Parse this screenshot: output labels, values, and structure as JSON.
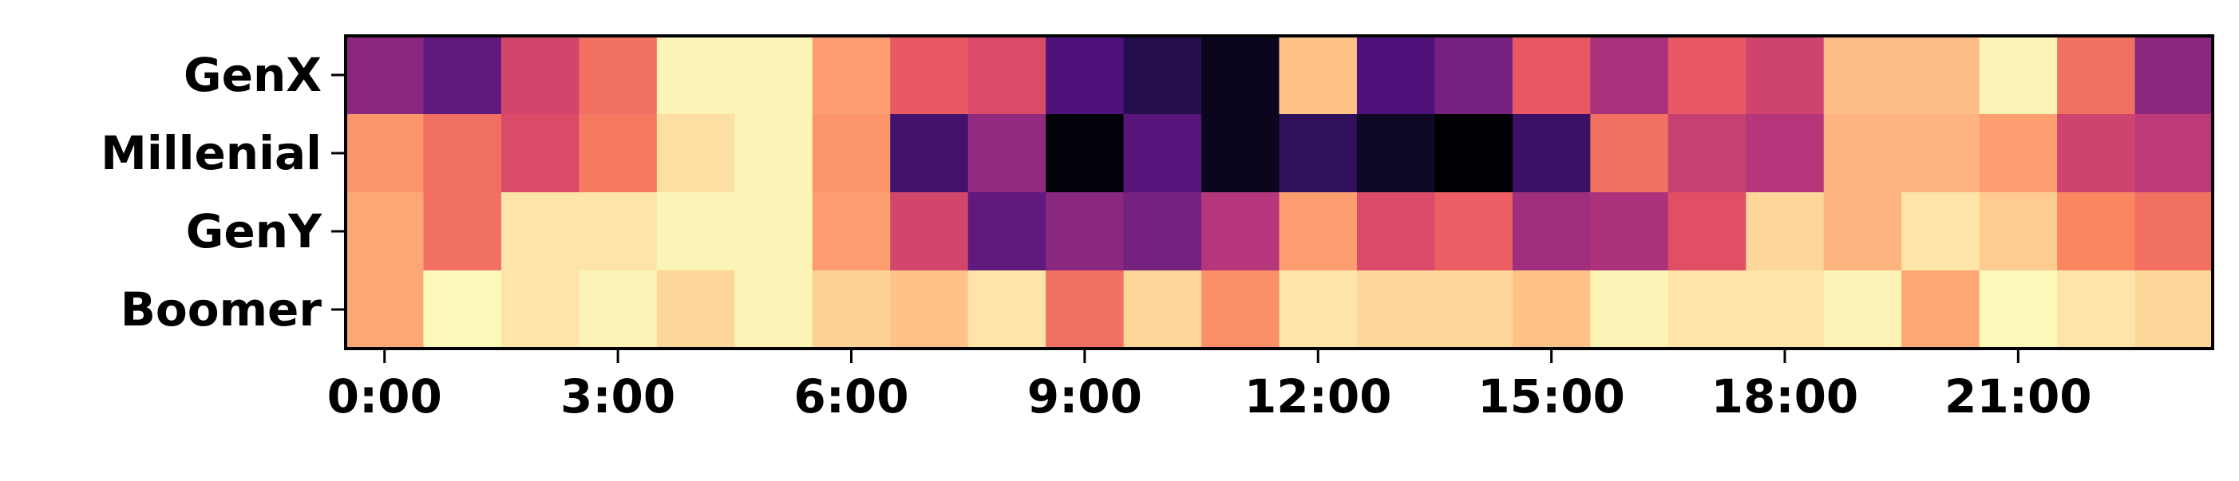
{
  "chart_data": {
    "type": "heatmap",
    "colormap": "magma",
    "rows": [
      "GenX",
      "Millenial",
      "GenY",
      "Boomer"
    ],
    "columns": [
      "0:00",
      "1:00",
      "2:00",
      "3:00",
      "4:00",
      "5:00",
      "6:00",
      "7:00",
      "8:00",
      "9:00",
      "10:00",
      "11:00",
      "12:00",
      "13:00",
      "14:00",
      "15:00",
      "16:00",
      "17:00",
      "18:00",
      "19:00",
      "20:00",
      "21:00",
      "22:00",
      "23:00"
    ],
    "x_tick_labels": [
      "0:00",
      "3:00",
      "6:00",
      "9:00",
      "12:00",
      "15:00",
      "18:00",
      "21:00"
    ],
    "x_tick_hours": [
      0,
      3,
      6,
      9,
      12,
      15,
      18,
      21
    ],
    "value_range": [
      0,
      1
    ],
    "values": [
      [
        0.4,
        0.3,
        0.58,
        0.7,
        0.98,
        0.98,
        0.8,
        0.65,
        0.6,
        0.25,
        0.15,
        0.05,
        0.88,
        0.25,
        0.35,
        0.65,
        0.47,
        0.65,
        0.57,
        0.87,
        0.87,
        0.98,
        0.7,
        0.4
      ],
      [
        0.78,
        0.7,
        0.6,
        0.72,
        0.94,
        0.98,
        0.78,
        0.22,
        0.42,
        0.01,
        0.27,
        0.05,
        0.18,
        0.07,
        0.0,
        0.2,
        0.7,
        0.55,
        0.5,
        0.85,
        0.85,
        0.8,
        0.57,
        0.52
      ],
      [
        0.82,
        0.7,
        0.95,
        0.95,
        0.98,
        0.98,
        0.8,
        0.58,
        0.3,
        0.4,
        0.35,
        0.5,
        0.8,
        0.6,
        0.66,
        0.45,
        0.48,
        0.62,
        0.92,
        0.85,
        0.95,
        0.9,
        0.75,
        0.7
      ],
      [
        0.82,
        0.99,
        0.95,
        0.98,
        0.92,
        0.98,
        0.91,
        0.88,
        0.95,
        0.7,
        0.92,
        0.77,
        0.95,
        0.92,
        0.92,
        0.88,
        0.98,
        0.95,
        0.95,
        0.98,
        0.82,
        0.99,
        0.95,
        0.92
      ]
    ],
    "xlabel": "",
    "ylabel": "",
    "title": "",
    "grid": false,
    "legend": "none"
  }
}
